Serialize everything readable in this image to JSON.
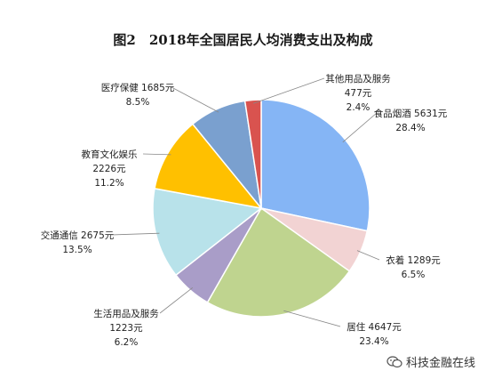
{
  "chart_data": {
    "type": "pie",
    "title": "图2　2018年全国居民人均消费支出及构成",
    "slices": [
      {
        "name": "食品烟酒",
        "value": 5631,
        "value_text": "5631元",
        "percent": 28.4,
        "percent_text": "28.4%",
        "color": "#85b5f5"
      },
      {
        "name": "衣着",
        "value": 1289,
        "value_text": "1289元",
        "percent": 6.5,
        "percent_text": "6.5%",
        "color": "#f2d3d3"
      },
      {
        "name": "居住",
        "value": 4647,
        "value_text": "4647元",
        "percent": 23.4,
        "percent_text": "23.4%",
        "color": "#bfd48f"
      },
      {
        "name": "生活用品及服务",
        "value": 1223,
        "value_text": "1223元",
        "percent": 6.2,
        "percent_text": "6.2%",
        "color": "#a99dc8"
      },
      {
        "name": "交通通信",
        "value": 2675,
        "value_text": "2675元",
        "percent": 13.5,
        "percent_text": "13.5%",
        "color": "#b8e2ea"
      },
      {
        "name": "教育文化娱乐",
        "value": 2226,
        "value_text": "2226元",
        "percent": 11.2,
        "percent_text": "11.2%",
        "color": "#ffc000"
      },
      {
        "name": "医疗保健",
        "value": 1685,
        "value_text": "1685元",
        "percent": 8.5,
        "percent_text": "8.5%",
        "color": "#7aa0cf"
      },
      {
        "name": "其他用品及服务",
        "value": 477,
        "value_text": "477元",
        "percent": 2.4,
        "percent_text": "2.4%",
        "color": "#d9534f"
      }
    ]
  },
  "watermark": {
    "text": "科技金融在线",
    "icon": "wechat-icon"
  }
}
